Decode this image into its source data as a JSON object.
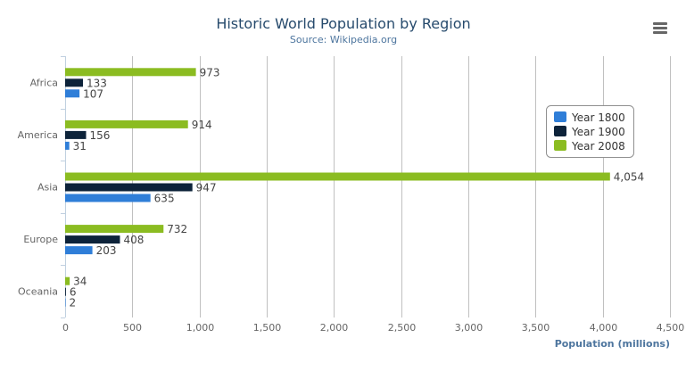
{
  "chart_data": {
    "type": "bar",
    "orientation": "horizontal",
    "title": "Historic World Population by Region",
    "subtitle": "Source: Wikipedia.org",
    "xlabel": "",
    "ylabel": "Population (millions)",
    "categories": [
      "Africa",
      "America",
      "Asia",
      "Europe",
      "Oceania"
    ],
    "series": [
      {
        "name": "Year 1800",
        "color": "#2f7ed8",
        "values": [
          107,
          31,
          635,
          203,
          2
        ]
      },
      {
        "name": "Year 1900",
        "color": "#0d233a",
        "values": [
          133,
          156,
          947,
          408,
          6
        ]
      },
      {
        "name": "Year 2008",
        "color": "#8bbc21",
        "values": [
          973,
          914,
          4054,
          732,
          34
        ]
      }
    ],
    "value_axis": {
      "min": 0,
      "max": 4500,
      "ticks": [
        0,
        500,
        1000,
        1500,
        2000,
        2500,
        3000,
        3500,
        4000,
        4500
      ],
      "tick_labels": [
        "0",
        "500",
        "1,000",
        "1,500",
        "2,000",
        "2,500",
        "3,000",
        "3,500",
        "4,000",
        "4,500"
      ]
    },
    "grid": true,
    "data_labels": true,
    "legend_placement": "right",
    "menu_icon": "hamburger-menu-icon"
  }
}
